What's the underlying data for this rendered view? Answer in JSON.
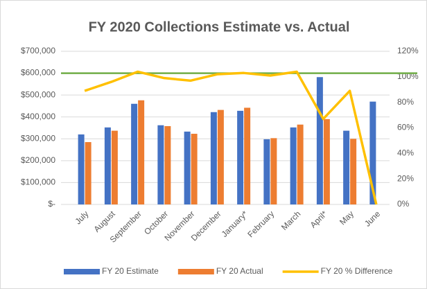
{
  "chart_data": {
    "type": "bar",
    "title": "FY 2020 Collections  Estimate vs. Actual",
    "categories": [
      "July",
      "August",
      "September",
      "October",
      "November",
      "December",
      "January*",
      "February",
      "March",
      "April*",
      "May",
      "June"
    ],
    "series": [
      {
        "name": "FY 20 Estimate",
        "color": "#4472c4",
        "values": [
          320000,
          352000,
          460000,
          362000,
          333000,
          422000,
          428000,
          298000,
          352000,
          582000,
          337000,
          470000
        ]
      },
      {
        "name": "FY 20 Actual",
        "color": "#ed7d31",
        "values": [
          285000,
          337000,
          476000,
          358000,
          323000,
          432000,
          442000,
          303000,
          365000,
          390000,
          300000,
          0
        ]
      },
      {
        "name": "FY 20 % Difference",
        "color": "#ffc000",
        "type": "line",
        "axis": "y2",
        "values": [
          89,
          96,
          104,
          99,
          97,
          102,
          103,
          101,
          104,
          67,
          89,
          0
        ]
      }
    ],
    "reference_line": {
      "value": 600000,
      "color": "#70ad47"
    },
    "ylim": [
      0,
      700000
    ],
    "yticks": [
      {
        "value": 0,
        "label": "$-"
      },
      {
        "value": 100000,
        "label": "$100,000"
      },
      {
        "value": 200000,
        "label": "$200,000"
      },
      {
        "value": 300000,
        "label": "$300,000"
      },
      {
        "value": 400000,
        "label": "$400,000"
      },
      {
        "value": 500000,
        "label": "$500,000"
      },
      {
        "value": 600000,
        "label": "$600,000"
      },
      {
        "value": 700000,
        "label": "$700,000"
      }
    ],
    "y2lim": [
      0,
      120
    ],
    "y2ticks": [
      {
        "value": 0,
        "label": "0%"
      },
      {
        "value": 20,
        "label": "20%"
      },
      {
        "value": 40,
        "label": "40%"
      },
      {
        "value": 60,
        "label": "60%"
      },
      {
        "value": 80,
        "label": "80%"
      },
      {
        "value": 100,
        "label": "100%"
      },
      {
        "value": 120,
        "label": "120%"
      }
    ],
    "grid": true,
    "legend": "bottom"
  }
}
